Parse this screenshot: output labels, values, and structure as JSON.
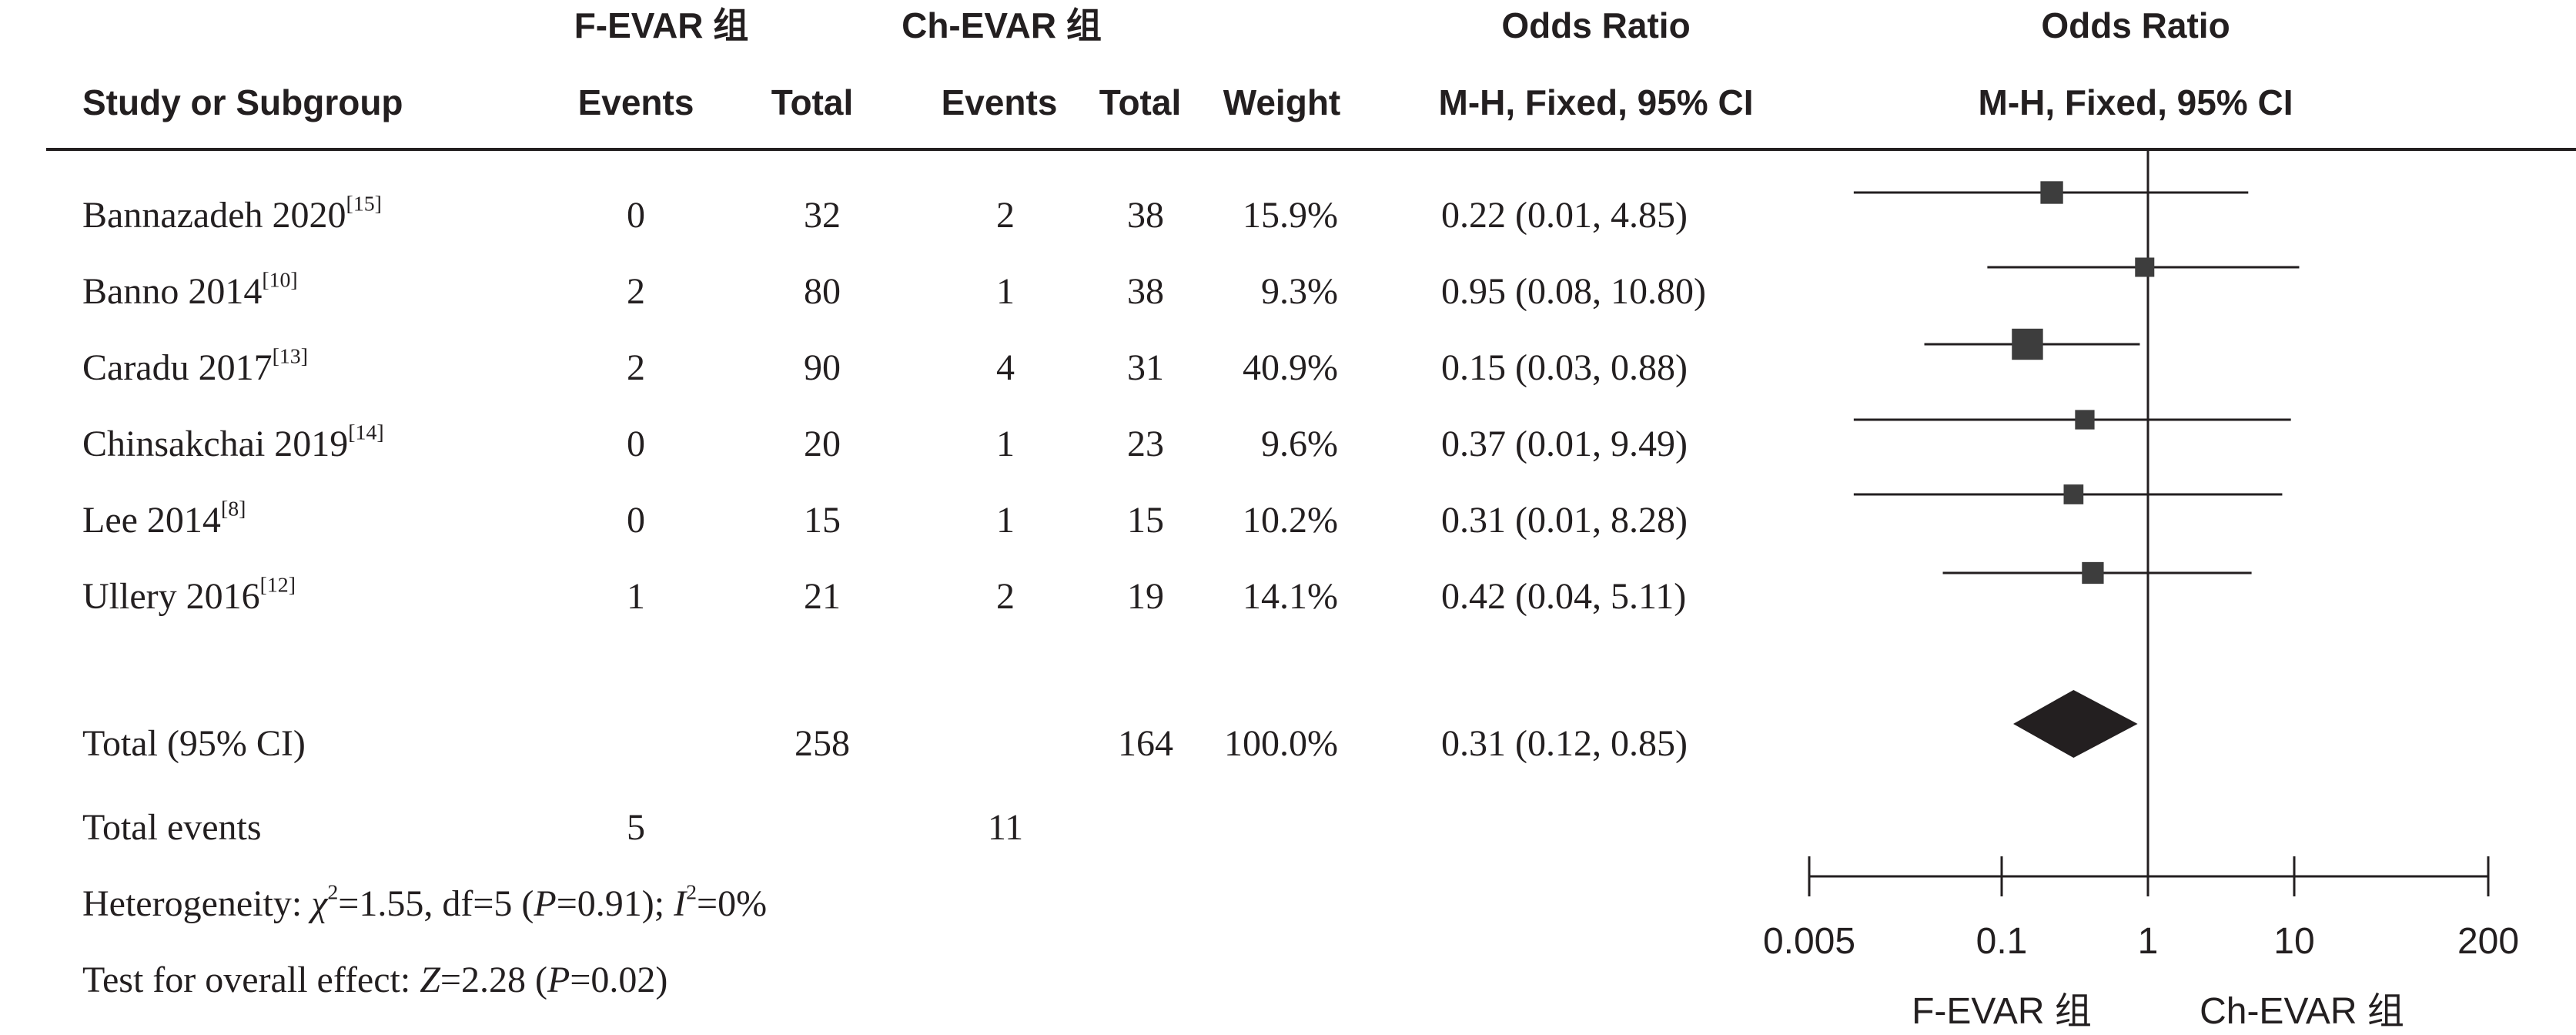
{
  "columns": {
    "group1": "F-EVAR 组",
    "group2": "Ch-EVAR 组",
    "or_title": "Odds Ratio",
    "or_plot_title": "Odds Ratio",
    "study": "Study or Subgroup",
    "events1": "Events",
    "total1": "Total",
    "events2": "Events",
    "total2": "Total",
    "weight": "Weight",
    "method": "M-H, Fixed, 95% CI",
    "plot_method": "M-H, Fixed, 95% CI"
  },
  "studies": [
    {
      "name": "Bannazadeh 2020",
      "ref": "[15]",
      "e1": "0",
      "n1": "32",
      "e2": "2",
      "n2": "38",
      "weight": "15.9%",
      "ci_text": "0.22 (0.01, 4.85)"
    },
    {
      "name": "Banno 2014",
      "ref": "[10]",
      "e1": "2",
      "n1": "80",
      "e2": "1",
      "n2": "38",
      "weight": "9.3%",
      "ci_text": "0.95 (0.08, 10.80)"
    },
    {
      "name": "Caradu 2017",
      "ref": "[13]",
      "e1": "2",
      "n1": "90",
      "e2": "4",
      "n2": "31",
      "weight": "40.9%",
      "ci_text": "0.15 (0.03, 0.88)"
    },
    {
      "name": "Chinsakchai 2019",
      "ref": "[14]",
      "e1": "0",
      "n1": "20",
      "e2": "1",
      "n2": "23",
      "weight": "9.6%",
      "ci_text": "0.37 (0.01, 9.49)"
    },
    {
      "name": "Lee 2014",
      "ref": "[8]",
      "e1": "0",
      "n1": "15",
      "e2": "1",
      "n2": "15",
      "weight": "10.2%",
      "ci_text": "0.31 (0.01, 8.28)"
    },
    {
      "name": "Ullery 2016",
      "ref": "[12]",
      "e1": "1",
      "n1": "21",
      "e2": "2",
      "n2": "19",
      "weight": "14.1%",
      "ci_text": "0.42 (0.04, 5.11)"
    }
  ],
  "total": {
    "label": "Total (95% CI)",
    "n1": "258",
    "n2": "164",
    "weight": "100.0%",
    "ci_text": "0.31 (0.12, 0.85)"
  },
  "total_events": {
    "label": "Total events",
    "e1": "5",
    "e2": "11"
  },
  "heterogeneity": {
    "prefix": "Heterogeneity: ",
    "chi": "χ",
    "chi_sup": "2",
    "part2": "=1.55, df=5 (",
    "p": "P",
    "part3": "=0.91); ",
    "i": "I",
    "i_sup": "2",
    "part4": "=0%"
  },
  "overall_effect": {
    "prefix": "Test for overall effect: ",
    "z": "Z",
    "part2": "=2.28 (",
    "p": "P",
    "part3": "=0.02)"
  },
  "favours": {
    "left": "F-EVAR 组",
    "right": "Ch-EVAR 组"
  },
  "chart_data": {
    "type": "forest",
    "scale": "log",
    "xlim": [
      0.005,
      200
    ],
    "ticks": [
      0.005,
      0.1,
      1,
      10,
      200
    ],
    "tick_labels": [
      "0.005",
      "0.1",
      "1",
      "10",
      "200"
    ],
    "reference_line": 1,
    "studies": [
      {
        "name": "Bannazadeh 2020",
        "or": 0.22,
        "lo": 0.01,
        "hi": 4.85,
        "weight": 15.9
      },
      {
        "name": "Banno 2014",
        "or": 0.95,
        "lo": 0.08,
        "hi": 10.8,
        "weight": 9.3
      },
      {
        "name": "Caradu 2017",
        "or": 0.15,
        "lo": 0.03,
        "hi": 0.88,
        "weight": 40.9
      },
      {
        "name": "Chinsakchai 2019",
        "or": 0.37,
        "lo": 0.01,
        "hi": 9.49,
        "weight": 9.6
      },
      {
        "name": "Lee 2014",
        "or": 0.31,
        "lo": 0.01,
        "hi": 8.28,
        "weight": 10.2
      },
      {
        "name": "Ullery 2016",
        "or": 0.42,
        "lo": 0.04,
        "hi": 5.11,
        "weight": 14.1
      }
    ],
    "pooled": {
      "or": 0.31,
      "lo": 0.12,
      "hi": 0.85
    },
    "colors": {
      "marker": "#3d3d3d",
      "line": "#231f20"
    }
  }
}
